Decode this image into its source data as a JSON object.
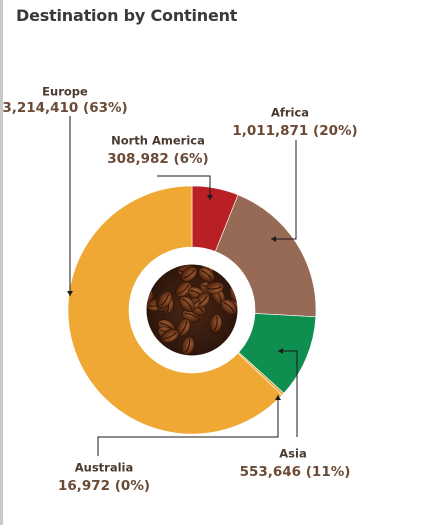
{
  "title": "Destination by Continent",
  "chart_data": {
    "type": "pie",
    "title": "Destination by Continent",
    "style": "donut",
    "center_image": "coffee-beans-photo",
    "slices": [
      {
        "name": "North America",
        "value": 308982,
        "label": "308,982 (6%)",
        "color": "#b82025"
      },
      {
        "name": "Africa",
        "value": 1011871,
        "label": "1,011,871 (20%)",
        "color": "#976a55"
      },
      {
        "name": "Asia",
        "value": 553646,
        "label": "553,646 (11%)",
        "color": "#0e8f4f"
      },
      {
        "name": "Australia",
        "value": 16972,
        "label": "16,972 (0%)",
        "color": "#e9a336"
      },
      {
        "name": "Europe",
        "value": 3214410,
        "label": "3,214,410 (63%)",
        "color": "#efa834"
      }
    ]
  }
}
